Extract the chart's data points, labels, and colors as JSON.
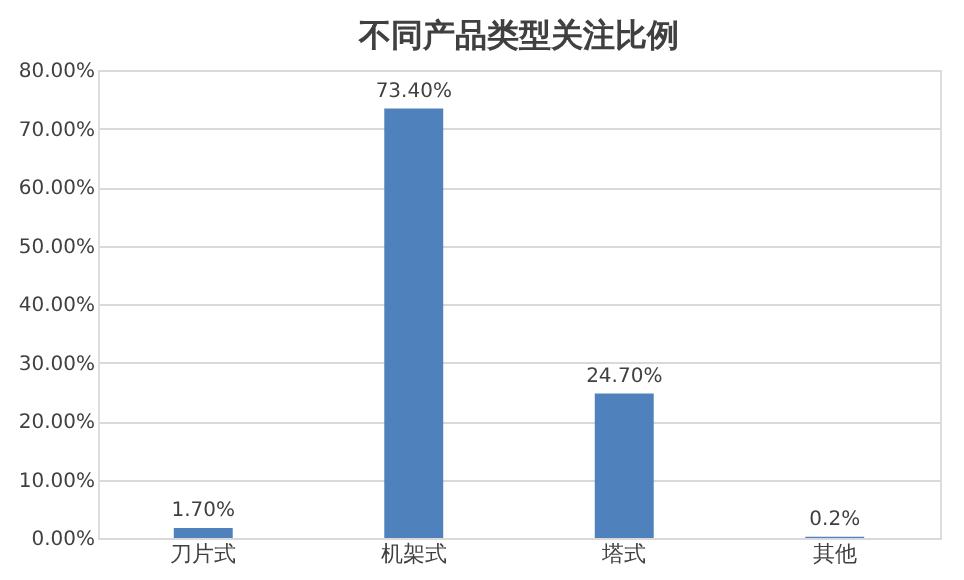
{
  "chart_data": {
    "type": "bar",
    "title": "不同产品类型关注比例",
    "categories": [
      "刀片式",
      "机架式",
      "塔式",
      "其他"
    ],
    "values": [
      1.7,
      73.4,
      24.7,
      0.2
    ],
    "value_labels": [
      "1.70%",
      "73.40%",
      "24.70%",
      "0.2%"
    ],
    "color": "#4f81bd",
    "ylim": [
      0,
      80
    ],
    "yticks": [
      {
        "value": 0,
        "label": "0.00%"
      },
      {
        "value": 10,
        "label": "10.00%"
      },
      {
        "value": 20,
        "label": "20.00%"
      },
      {
        "value": 30,
        "label": "30.00%"
      },
      {
        "value": 40,
        "label": "40.00%"
      },
      {
        "value": 50,
        "label": "50.00%"
      },
      {
        "value": 60,
        "label": "60.00%"
      },
      {
        "value": 70,
        "label": "70.00%"
      },
      {
        "value": 80,
        "label": "80.00%"
      }
    ],
    "grid": "y"
  }
}
